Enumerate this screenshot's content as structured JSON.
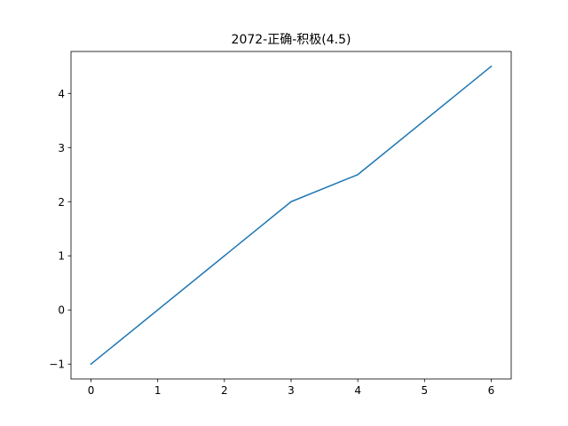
{
  "chart_data": {
    "type": "line",
    "title": "2072-正确-积极(4.5)",
    "xlabel": "",
    "ylabel": "",
    "x": [
      0,
      3,
      4,
      6
    ],
    "series": [
      {
        "values": [
          -1,
          2,
          2.5,
          4.5
        ],
        "color": "#1f77b4"
      }
    ],
    "xlim": [
      -0.3,
      6.3
    ],
    "ylim": [
      -1.275,
      4.775
    ],
    "xticks": [
      0,
      1,
      2,
      3,
      4,
      5,
      6
    ],
    "xtick_labels": [
      "0",
      "1",
      "2",
      "3",
      "4",
      "5",
      "6"
    ],
    "yticks": [
      -1,
      0,
      1,
      2,
      3,
      4
    ],
    "ytick_labels": [
      "−1",
      "0",
      "1",
      "2",
      "3",
      "4"
    ],
    "grid": false,
    "legend": "none"
  }
}
